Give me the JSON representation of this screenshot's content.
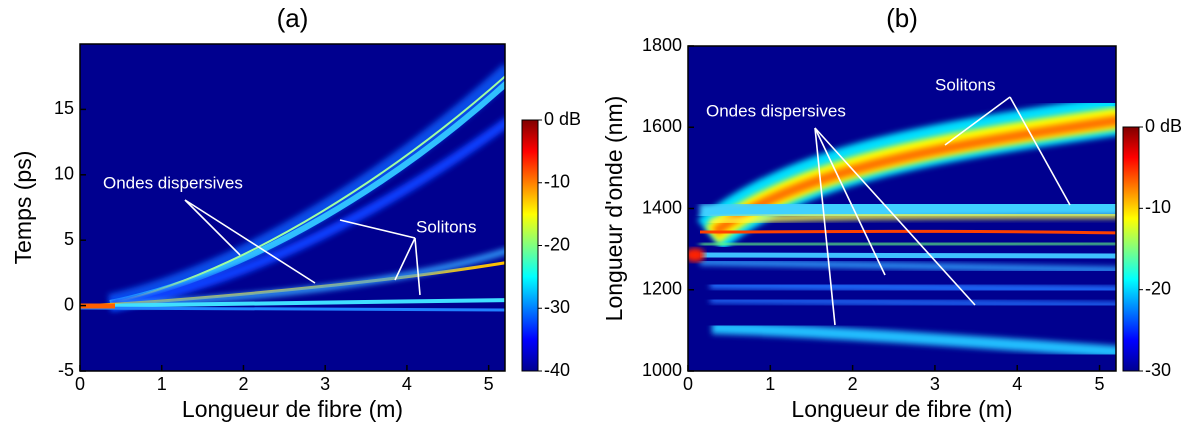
{
  "chart_data": [
    {
      "type": "heatmap",
      "title": "(a)",
      "x_label": "Longueur de fibre (m)",
      "y_label": "Temps (ps)",
      "xlim": [
        0,
        5.2
      ],
      "xticks": [
        0,
        1,
        2,
        3,
        4,
        5
      ],
      "ylim": [
        -5,
        20
      ],
      "yticks": [
        -5,
        0,
        5,
        10,
        15
      ],
      "clim": [
        -40,
        0
      ],
      "cticks": [
        {
          "value": 0,
          "label": "0 dB"
        },
        -10,
        -20,
        -30,
        -40
      ],
      "annotations": [
        "Ondes dispersives",
        "Solitons"
      ]
    },
    {
      "type": "heatmap",
      "title": "(b)",
      "x_label": "Longueur de fibre (m)",
      "y_label": "Longueur d'onde (nm)",
      "xlim": [
        0,
        5.2
      ],
      "xticks": [
        0,
        1,
        2,
        3,
        4,
        5
      ],
      "ylim": [
        1000,
        1800
      ],
      "yticks": [
        1000,
        1200,
        1400,
        1600,
        1800
      ],
      "clim": [
        -30,
        0
      ],
      "cticks": [
        {
          "value": 0,
          "label": "0 dB"
        },
        -10,
        -20,
        -30
      ],
      "annotations": [
        "Ondes dispersives",
        "Solitons"
      ]
    }
  ]
}
